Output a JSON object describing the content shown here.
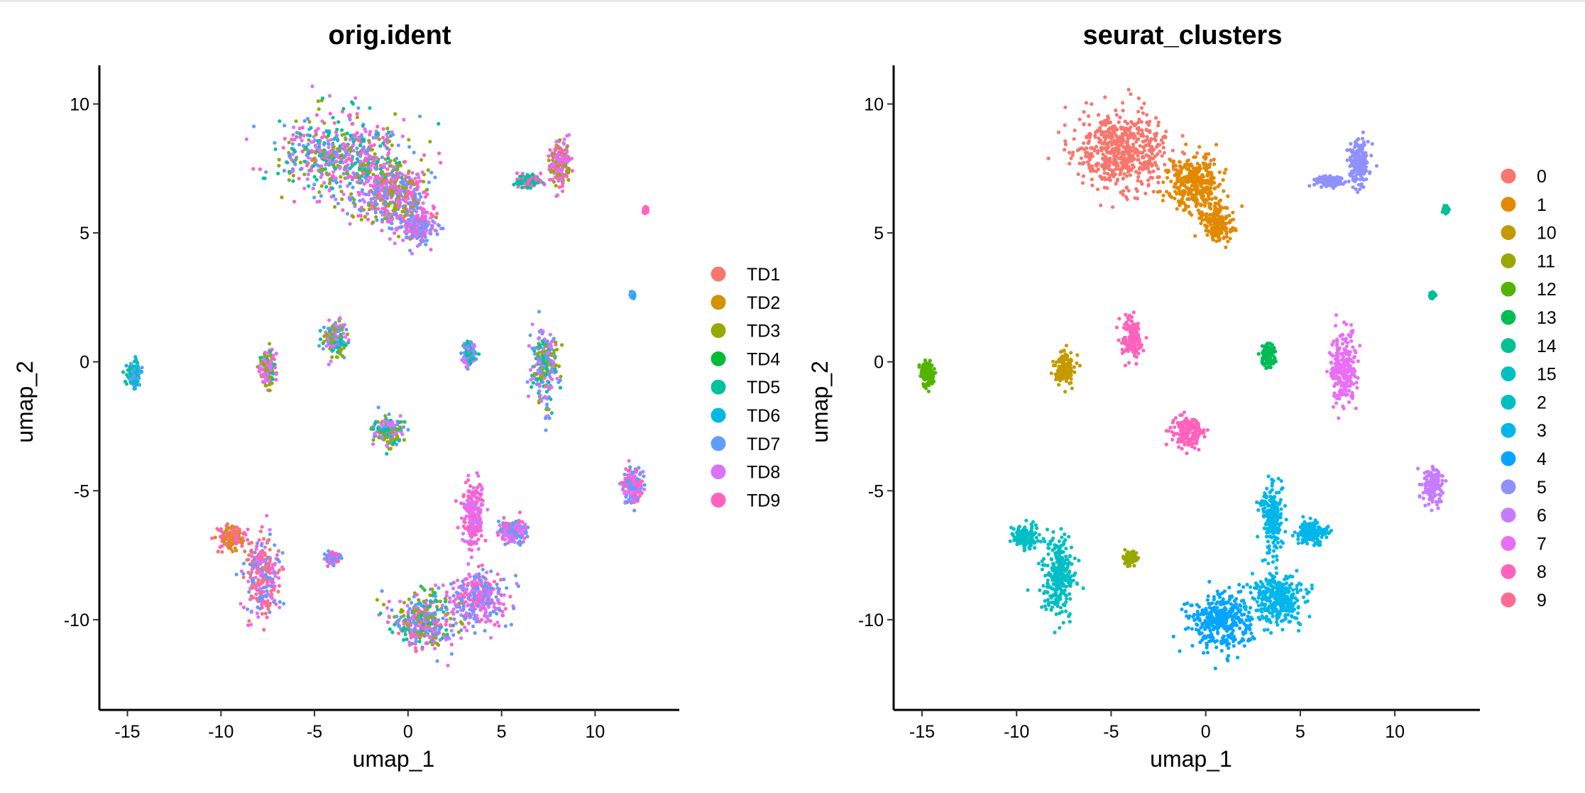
{
  "colors": {
    "TD1": "#F8766D",
    "TD2": "#D39200",
    "TD3": "#93AA00",
    "TD4": "#00BA38",
    "TD5": "#00C19F",
    "TD6": "#00B9E3",
    "TD7": "#619CFF",
    "TD8": "#DB72FB",
    "TD9": "#FF61C3",
    "0": "#F8766D",
    "1": "#E38900",
    "10": "#C49A00",
    "11": "#99A800",
    "12": "#53B400",
    "13": "#00BC56",
    "14": "#00C094",
    "15": "#00BFC4",
    "2": "#00BFC4",
    "3": "#00B6EB",
    "4": "#06A4FF",
    "5": "#8F91FF",
    "6": "#C77CFF",
    "7": "#E96EF5",
    "8": "#FF62BC",
    "9": "#FF6C91"
  },
  "chart_data": [
    {
      "type": "scatter",
      "title": "orig.ident",
      "xlabel": "umap_1",
      "ylabel": "umap_2",
      "xlim": [
        -16.5,
        14.5
      ],
      "ylim": [
        -13.5,
        11.5
      ],
      "xticks": [
        -15,
        -10,
        -5,
        0,
        5,
        10
      ],
      "yticks": [
        -10,
        -5,
        0,
        5,
        10
      ],
      "xtick_labels": [
        "-15",
        "-10",
        "-5",
        "0",
        "5",
        "10"
      ],
      "ytick_labels": [
        "-10",
        "-5",
        "0",
        "5",
        "10"
      ],
      "legend_position": "right",
      "legend": [
        "TD1",
        "TD2",
        "TD3",
        "TD4",
        "TD5",
        "TD6",
        "TD7",
        "TD8",
        "TD9"
      ],
      "grid": false,
      "clusters": [
        {
          "x": -3.5,
          "y": 8.0,
          "sx": 3.0,
          "sy": 1.4,
          "mix": [
            "TD8",
            "TD9",
            "TD7",
            "TD5",
            "TD3"
          ]
        },
        {
          "x": -0.8,
          "y": 6.5,
          "sx": 1.8,
          "sy": 1.2,
          "mix": [
            "TD8",
            "TD9",
            "TD7",
            "TD3"
          ]
        },
        {
          "x": 0.6,
          "y": 5.2,
          "sx": 0.8,
          "sy": 0.6,
          "mix": [
            "TD8",
            "TD9",
            "TD7"
          ]
        },
        {
          "x": 8.1,
          "y": 7.7,
          "sx": 0.5,
          "sy": 0.8,
          "mix": [
            "TD9",
            "TD8",
            "TD3"
          ]
        },
        {
          "x": 6.5,
          "y": 7.0,
          "sx": 0.6,
          "sy": 0.2,
          "mix": [
            "TD9",
            "TD5"
          ]
        },
        {
          "x": 12.7,
          "y": 5.9,
          "sx": 0.1,
          "sy": 0.1,
          "mix": [
            "TD9"
          ]
        },
        {
          "x": 12.0,
          "y": 2.6,
          "sx": 0.1,
          "sy": 0.1,
          "mix": [
            "TD6",
            "TD7"
          ]
        },
        {
          "x": -14.7,
          "y": -0.5,
          "sx": 0.3,
          "sy": 0.4,
          "mix": [
            "TD7",
            "TD6",
            "TD5"
          ]
        },
        {
          "x": -7.5,
          "y": -0.3,
          "sx": 0.4,
          "sy": 0.6,
          "mix": [
            "TD8",
            "TD9",
            "TD5",
            "TD3"
          ]
        },
        {
          "x": -3.9,
          "y": 0.9,
          "sx": 0.5,
          "sy": 0.6,
          "mix": [
            "TD8",
            "TD7",
            "TD5",
            "TD3"
          ]
        },
        {
          "x": 3.3,
          "y": 0.3,
          "sx": 0.3,
          "sy": 0.4,
          "mix": [
            "TD8",
            "TD7",
            "TD5"
          ]
        },
        {
          "x": 7.3,
          "y": -0.2,
          "sx": 0.6,
          "sy": 1.3,
          "mix": [
            "TD8",
            "TD7",
            "TD3",
            "TD5"
          ]
        },
        {
          "x": -1.0,
          "y": -2.7,
          "sx": 0.7,
          "sy": 0.5,
          "mix": [
            "TD5",
            "TD7",
            "TD8",
            "TD3"
          ]
        },
        {
          "x": 12.0,
          "y": -4.8,
          "sx": 0.5,
          "sy": 0.6,
          "mix": [
            "TD9",
            "TD8",
            "TD7"
          ]
        },
        {
          "x": -7.8,
          "y": -8.3,
          "sx": 0.8,
          "sy": 1.3,
          "mix": [
            "TD9",
            "TD8",
            "TD1",
            "TD7"
          ]
        },
        {
          "x": -9.5,
          "y": -6.8,
          "sx": 0.6,
          "sy": 0.4,
          "mix": [
            "TD1",
            "TD2",
            "TD9"
          ]
        },
        {
          "x": -4.0,
          "y": -7.6,
          "sx": 0.3,
          "sy": 0.2,
          "mix": [
            "TD7",
            "TD8",
            "TD9"
          ]
        },
        {
          "x": 0.8,
          "y": -10.0,
          "sx": 1.6,
          "sy": 1.0,
          "mix": [
            "TD8",
            "TD7",
            "TD9",
            "TD3",
            "TD5"
          ]
        },
        {
          "x": 3.8,
          "y": -9.2,
          "sx": 1.3,
          "sy": 0.9,
          "mix": [
            "TD9",
            "TD8",
            "TD7"
          ]
        },
        {
          "x": 3.5,
          "y": -6.0,
          "sx": 0.5,
          "sy": 1.2,
          "mix": [
            "TD9",
            "TD8"
          ]
        },
        {
          "x": 5.6,
          "y": -6.6,
          "sx": 0.7,
          "sy": 0.4,
          "mix": [
            "TD9",
            "TD8",
            "TD7"
          ]
        }
      ]
    },
    {
      "type": "scatter",
      "title": "seurat_clusters",
      "xlabel": "umap_1",
      "ylabel": "umap_2",
      "xlim": [
        -16.5,
        14.5
      ],
      "ylim": [
        -13.5,
        11.5
      ],
      "xticks": [
        -15,
        -10,
        -5,
        0,
        5,
        10
      ],
      "yticks": [
        -10,
        -5,
        0,
        5,
        10
      ],
      "xtick_labels": [
        "-15",
        "-10",
        "-5",
        "0",
        "5",
        "10"
      ],
      "ytick_labels": [
        "-10",
        "-5",
        "0",
        "5",
        "10"
      ],
      "legend_position": "right",
      "legend": [
        "0",
        "1",
        "10",
        "11",
        "12",
        "13",
        "14",
        "15",
        "2",
        "3",
        "4",
        "5",
        "6",
        "7",
        "8",
        "9"
      ],
      "grid": false,
      "clusters": [
        {
          "x": -4.3,
          "y": 8.2,
          "sx": 2.2,
          "sy": 1.3,
          "mix": [
            "0"
          ]
        },
        {
          "x": -0.6,
          "y": 6.9,
          "sx": 1.3,
          "sy": 1.0,
          "mix": [
            "1"
          ]
        },
        {
          "x": 0.7,
          "y": 5.4,
          "sx": 0.7,
          "sy": 0.6,
          "mix": [
            "1"
          ]
        },
        {
          "x": 8.1,
          "y": 7.7,
          "sx": 0.5,
          "sy": 0.8,
          "mix": [
            "5"
          ]
        },
        {
          "x": 6.5,
          "y": 7.0,
          "sx": 0.6,
          "sy": 0.2,
          "mix": [
            "5"
          ]
        },
        {
          "x": 12.7,
          "y": 5.9,
          "sx": 0.1,
          "sy": 0.1,
          "mix": [
            "14"
          ]
        },
        {
          "x": 12.0,
          "y": 2.6,
          "sx": 0.1,
          "sy": 0.1,
          "mix": [
            "14"
          ]
        },
        {
          "x": -14.7,
          "y": -0.5,
          "sx": 0.3,
          "sy": 0.4,
          "mix": [
            "12"
          ]
        },
        {
          "x": -7.5,
          "y": -0.3,
          "sx": 0.4,
          "sy": 0.6,
          "mix": [
            "10"
          ]
        },
        {
          "x": -3.9,
          "y": 0.9,
          "sx": 0.5,
          "sy": 0.6,
          "mix": [
            "8"
          ]
        },
        {
          "x": 3.3,
          "y": 0.3,
          "sx": 0.3,
          "sy": 0.4,
          "mix": [
            "13"
          ]
        },
        {
          "x": 7.3,
          "y": -0.2,
          "sx": 0.6,
          "sy": 1.3,
          "mix": [
            "7"
          ]
        },
        {
          "x": -1.0,
          "y": -2.7,
          "sx": 0.7,
          "sy": 0.5,
          "mix": [
            "8"
          ]
        },
        {
          "x": 12.0,
          "y": -4.8,
          "sx": 0.5,
          "sy": 0.6,
          "mix": [
            "6"
          ]
        },
        {
          "x": -7.8,
          "y": -8.3,
          "sx": 0.8,
          "sy": 1.3,
          "mix": [
            "2"
          ]
        },
        {
          "x": -9.5,
          "y": -6.8,
          "sx": 0.6,
          "sy": 0.4,
          "mix": [
            "2"
          ]
        },
        {
          "x": -4.0,
          "y": -7.6,
          "sx": 0.3,
          "sy": 0.2,
          "mix": [
            "11"
          ]
        },
        {
          "x": 0.8,
          "y": -10.0,
          "sx": 1.6,
          "sy": 1.0,
          "mix": [
            "4"
          ]
        },
        {
          "x": 3.8,
          "y": -9.2,
          "sx": 1.3,
          "sy": 0.9,
          "mix": [
            "3"
          ]
        },
        {
          "x": 3.5,
          "y": -6.0,
          "sx": 0.5,
          "sy": 1.2,
          "mix": [
            "3"
          ]
        },
        {
          "x": 5.6,
          "y": -6.6,
          "sx": 0.7,
          "sy": 0.4,
          "mix": [
            "3"
          ]
        }
      ]
    }
  ]
}
